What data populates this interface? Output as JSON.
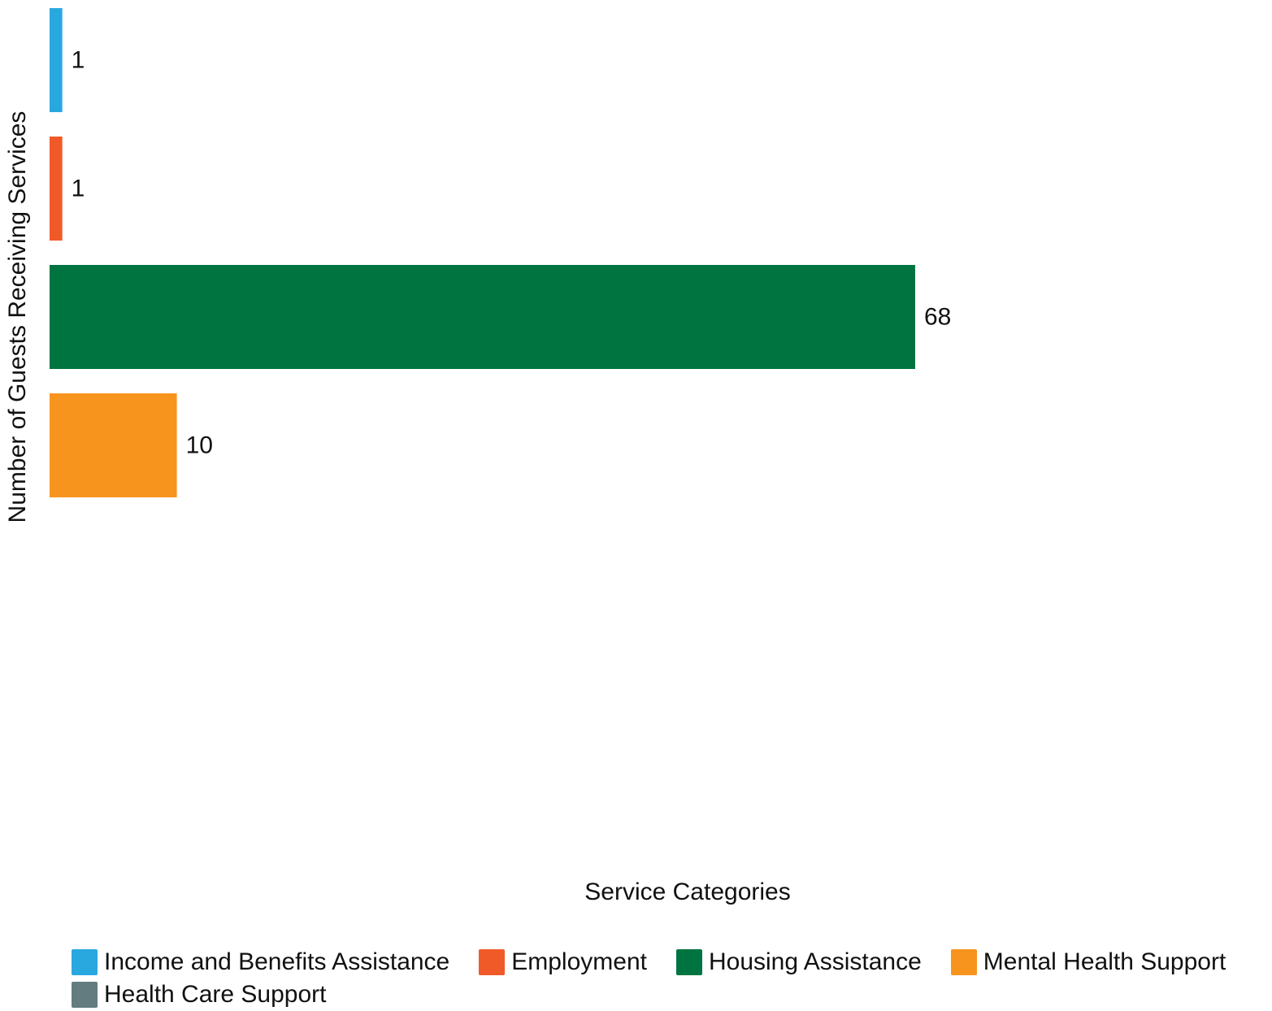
{
  "chart_data": {
    "type": "bar",
    "orientation": "horizontal",
    "xlabel": "Service Categories",
    "ylabel": "Number of Guests Receiving Services",
    "xlim": [
      0,
      98
    ],
    "grid": false,
    "legend_position": "bottom",
    "series": [
      {
        "name": "Income and Benefits Assistance",
        "value": 1,
        "color": "#29a8e0"
      },
      {
        "name": "Employment",
        "value": 1,
        "color": "#f05a28"
      },
      {
        "name": "Housing Assistance",
        "value": 68,
        "color": "#007440"
      },
      {
        "name": "Mental Health Support",
        "value": 10,
        "color": "#f7941e"
      },
      {
        "name": "Health Care Support",
        "value": null,
        "color": "#627c80"
      }
    ]
  }
}
